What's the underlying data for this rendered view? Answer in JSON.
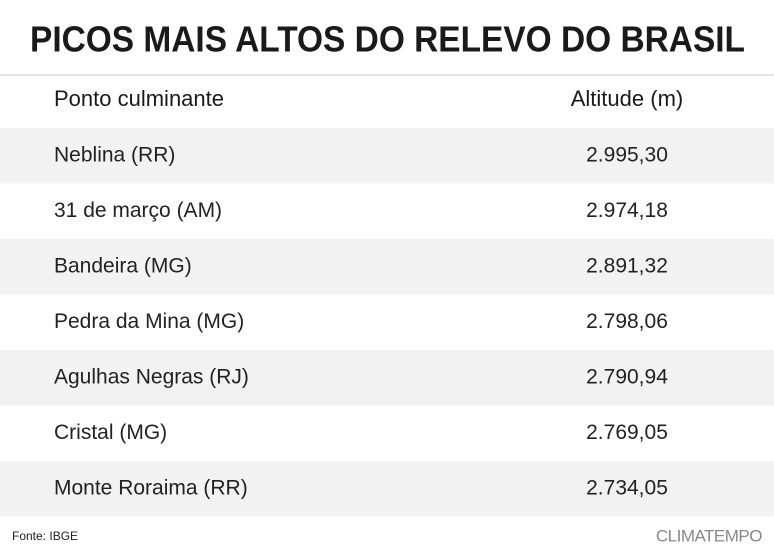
{
  "header": {
    "title": "PICOS MAIS ALTOS DO RELEVO DO BRASIL"
  },
  "table": {
    "columns": [
      "Ponto culminante",
      "Altitude (m)"
    ],
    "rows": [
      [
        "Neblina (RR)",
        "2.995,30"
      ],
      [
        "31 de março (AM)",
        "2.974,18"
      ],
      [
        "Bandeira (MG)",
        "2.891,32"
      ],
      [
        "Pedra da Mina (MG)",
        "2.798,06"
      ],
      [
        "Agulhas Negras (RJ)",
        "2.790,94"
      ],
      [
        "Cristal (MG)",
        "2.769,05"
      ],
      [
        "Monte Roraima (RR)",
        "2.734,05"
      ]
    ]
  },
  "footer": {
    "source": "Fonte: IBGE",
    "brand": "CLIMATEMPO"
  }
}
